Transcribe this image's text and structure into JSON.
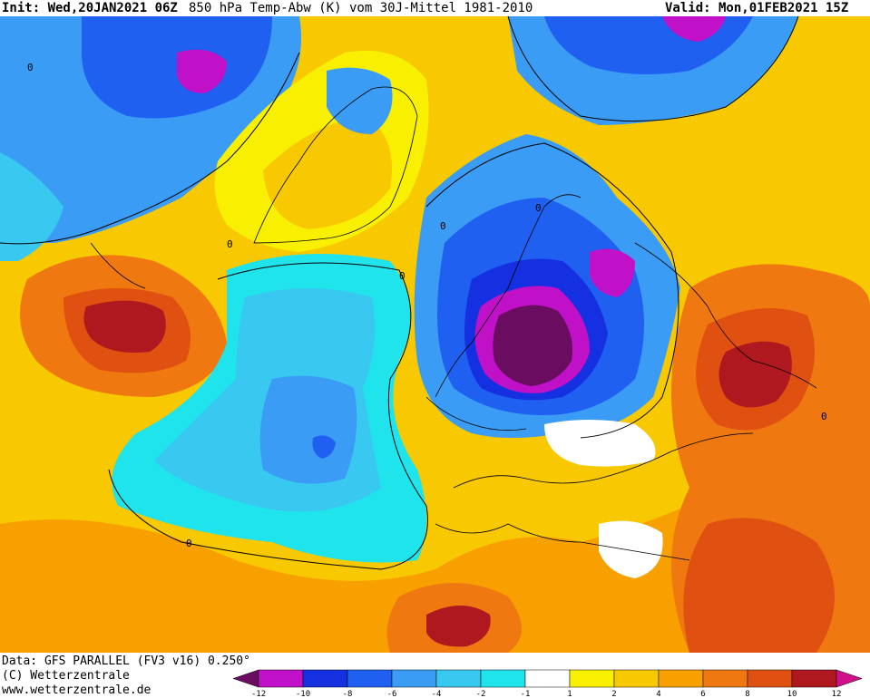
{
  "header": {
    "init": "Init: Wed,20JAN2021 06Z",
    "title": "850 hPa Temp-Abw (K) vom 30J-Mittel 1981-2010",
    "valid": "Valid: Mon,01FEB2021 15Z"
  },
  "footer": {
    "data_line": "Data: GFS PARALLEL (FV3 v16) 0.250°",
    "copyright": "(C) Wetterzentrale",
    "url": "www.wetterzentrale.de"
  },
  "legend": {
    "colors": [
      "#6a0d60",
      "#c010c8",
      "#1530e0",
      "#2060f0",
      "#3a9cf5",
      "#38c8f0",
      "#20e4ec",
      "#ffffff",
      "#f8f000",
      "#f8c800",
      "#f8a000",
      "#f07810",
      "#e05010",
      "#b01820",
      "#d0108a"
    ],
    "tick_labels": [
      "-12",
      "-10",
      "-8",
      "-6",
      "-4",
      "-2",
      "-1",
      "1",
      "2",
      "4",
      "6",
      "8",
      "10",
      "12"
    ]
  }
}
